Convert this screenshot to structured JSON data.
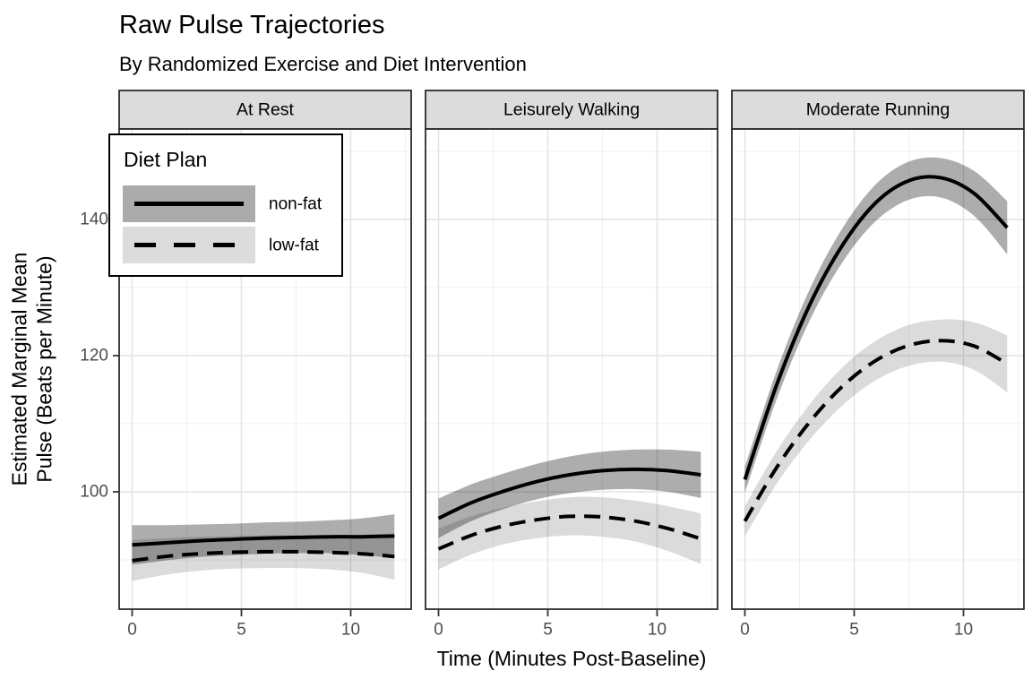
{
  "title": "Raw Pulse Trajectories",
  "subtitle": "By Randomized Exercise and Diet Intervention",
  "axes": {
    "x_title": "Time (Minutes Post-Baseline)",
    "y_title": "Estimated Marginal Mean\nPulse (Beats per Minute)",
    "x_ticks": [
      0,
      5,
      10
    ],
    "x_minor_ticks": [
      2.5,
      7.5,
      12.5
    ],
    "y_ticks": [
      100,
      120,
      140
    ],
    "y_minor_ticks": [
      90,
      110,
      130,
      150
    ],
    "x_range": [
      0,
      12
    ],
    "y_range": [
      82.8,
      153.4
    ]
  },
  "legend": {
    "title": "Diet Plan",
    "entries": [
      {
        "label": "non-fat",
        "linetype": "solid",
        "ribbon_color": "#ABABAB"
      },
      {
        "label": "low-fat",
        "linetype": "dashed",
        "ribbon_color": "#DCDCDC"
      }
    ]
  },
  "colors": {
    "line": "#000000",
    "ribbon_dark": "rgba(0,0,0,0.32)",
    "ribbon_light": "rgba(0,0,0,0.14)",
    "strip_fill": "#DCDCDC",
    "panel_border": "#2b2b2b",
    "grid_major": "#E3E3E3",
    "grid_minor": "#F0F0F0",
    "tick_label": "#4d4d4d"
  },
  "chart_data": {
    "type": "line",
    "title": "Raw Pulse Trajectories",
    "subtitle": "By Randomized Exercise and Diet Intervention",
    "xlabel": "Time (Minutes Post-Baseline)",
    "ylabel": "Estimated Marginal Mean Pulse (Beats per Minute)",
    "x": [
      0,
      1.5,
      3,
      4.5,
      6,
      7.5,
      9,
      10.5,
      12
    ],
    "facets": [
      {
        "label": "At Rest",
        "series": [
          {
            "name": "non-fat",
            "linetype": "solid",
            "y": [
              92.2,
              92.5,
              92.8,
              93.0,
              93.2,
              93.3,
              93.4,
              93.4,
              93.5
            ],
            "lo": [
              89.3,
              89.9,
              90.4,
              90.7,
              90.9,
              91.0,
              91.0,
              90.7,
              90.3
            ],
            "hi": [
              95.1,
              95.1,
              95.2,
              95.3,
              95.5,
              95.6,
              95.8,
              96.1,
              96.7
            ]
          },
          {
            "name": "low-fat",
            "linetype": "dashed",
            "y": [
              89.9,
              90.5,
              90.9,
              91.1,
              91.2,
              91.2,
              91.1,
              90.9,
              90.5
            ],
            "lo": [
              86.9,
              87.8,
              88.4,
              88.7,
              88.8,
              88.8,
              88.6,
              88.1,
              87.1
            ],
            "hi": [
              92.9,
              93.2,
              93.4,
              93.5,
              93.6,
              93.6,
              93.6,
              93.7,
              93.9
            ]
          }
        ]
      },
      {
        "label": "Leisurely Walking",
        "series": [
          {
            "name": "non-fat",
            "linetype": "solid",
            "y": [
              96.1,
              98.4,
              100.1,
              101.5,
              102.5,
              103.1,
              103.3,
              103.1,
              102.5
            ],
            "lo": [
              93.2,
              95.7,
              97.5,
              98.9,
              99.8,
              100.3,
              100.4,
              100.0,
              99.1
            ],
            "hi": [
              99.0,
              101.1,
              102.7,
              104.1,
              105.2,
              105.9,
              106.2,
              106.2,
              105.9
            ]
          },
          {
            "name": "low-fat",
            "linetype": "dashed",
            "y": [
              91.6,
              93.6,
              95.0,
              95.9,
              96.4,
              96.3,
              95.7,
              94.6,
              93.1
            ],
            "lo": [
              88.6,
              90.8,
              92.3,
              93.2,
              93.6,
              93.4,
              92.7,
              91.3,
              89.4
            ],
            "hi": [
              94.6,
              96.4,
              97.7,
              98.6,
              99.2,
              99.2,
              98.7,
              97.9,
              96.8
            ]
          }
        ]
      },
      {
        "label": "Moderate Running",
        "series": [
          {
            "name": "non-fat",
            "linetype": "solid",
            "y": [
              101.8,
              116.1,
              127.7,
              136.4,
              142.5,
              145.7,
              146.1,
              143.8,
              138.8
            ],
            "lo": [
              99.9,
              114.0,
              125.4,
              133.9,
              139.8,
              142.9,
              143.2,
              140.5,
              134.9
            ],
            "hi": [
              103.7,
              118.2,
              130.0,
              138.9,
              145.2,
              148.5,
              149.0,
              147.1,
              142.7
            ]
          },
          {
            "name": "low-fat",
            "linetype": "dashed",
            "y": [
              95.7,
              103.8,
              110.4,
              115.6,
              119.3,
              121.5,
              122.2,
              121.4,
              118.8
            ],
            "lo": [
              93.5,
              101.4,
              107.8,
              112.8,
              116.4,
              118.5,
              119.1,
              117.9,
              114.6
            ],
            "hi": [
              97.9,
              106.2,
              113.0,
              118.4,
              122.2,
              124.5,
              125.3,
              124.9,
              123.0
            ]
          }
        ]
      }
    ]
  }
}
